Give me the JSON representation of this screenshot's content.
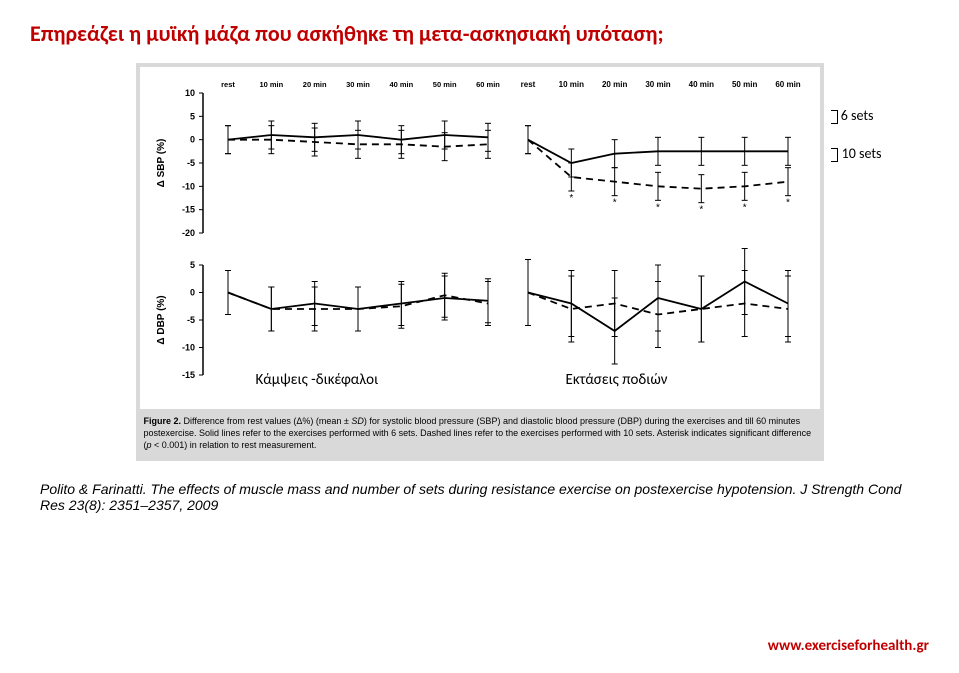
{
  "title": "Επηρεάζει η μυϊκή μάζα που ασκήθηκε τη μετα-ασκησιακή υπόταση;",
  "figure": {
    "annotation_6sets": "6 sets",
    "annotation_10sets": "10 sets",
    "overlay_left": "Κάμψεις -δικέφαλοι",
    "overlay_right": "Εκτάσεις ποδιών",
    "top_panel": {
      "ylabel": "Δ SBP (%)",
      "ylim": [
        -20,
        10
      ],
      "yticks": [
        -20,
        -15,
        -10,
        -5,
        0,
        5,
        10
      ],
      "label_fontsize": 10,
      "left_xticks": [
        "rest",
        "10 min",
        "20 min",
        "30 min",
        "40 min",
        "50 min",
        "60 min"
      ],
      "right_xticks": [
        "rest",
        "10 min",
        "20 min",
        "30 min",
        "40 min",
        "50 min",
        "60 min"
      ],
      "left_solid": {
        "y": [
          0,
          1,
          0.5,
          1,
          0,
          1,
          0.5
        ],
        "err": [
          3,
          3,
          3,
          3,
          3,
          3,
          3
        ]
      },
      "left_dashed": {
        "y": [
          0,
          0,
          -0.5,
          -1,
          -1,
          -1.5,
          -1
        ],
        "err": [
          3,
          3,
          3,
          3,
          3,
          3,
          3
        ]
      },
      "right_solid": {
        "y": [
          0,
          -5,
          -3,
          -2.5,
          -2.5,
          -2.5,
          -2.5
        ],
        "err": [
          3,
          3,
          3,
          3,
          3,
          3,
          3
        ]
      },
      "right_dashed": {
        "y": [
          0,
          -8,
          -9,
          -10,
          -10.5,
          -10,
          -9
        ],
        "err": [
          3,
          3,
          3,
          3,
          3,
          3,
          3
        ]
      },
      "right_asterisks_idx": [
        1,
        2,
        3,
        4,
        5,
        6
      ],
      "line_color": "#000000",
      "line_width": 1.5
    },
    "bottom_panel": {
      "ylabel": "Δ DBP (%)",
      "ylim": [
        -15,
        5
      ],
      "yticks": [
        -15,
        -10,
        -5,
        0,
        5
      ],
      "label_fontsize": 10,
      "left_solid": {
        "y": [
          0,
          -3,
          -2,
          -3,
          -2,
          -1,
          -1.5
        ],
        "err": [
          4,
          4,
          4,
          4,
          4,
          4,
          4
        ]
      },
      "left_dashed": {
        "y": [
          0,
          -3,
          -3,
          -3,
          -2.5,
          -0.5,
          -2
        ],
        "err": [
          4,
          4,
          4,
          4,
          4,
          4,
          4
        ]
      },
      "right_solid": {
        "y": [
          0,
          -2,
          -7,
          -1,
          -3,
          2,
          -2
        ],
        "err": [
          6,
          6,
          6,
          6,
          6,
          6,
          6
        ]
      },
      "right_dashed": {
        "y": [
          0,
          -3,
          -2,
          -4,
          -3,
          -2,
          -3
        ],
        "err": [
          6,
          6,
          6,
          6,
          6,
          6,
          6
        ]
      },
      "line_color": "#000000",
      "line_width": 1.5
    },
    "caption_html": "Figure 2. Difference from rest values (Δ%) (mean ± SD) for systolic blood pressure (SBP) and diastolic blood pressure (DBP) during the exercises and till 60 minutes postexercise. Solid lines refer to the exercises performed with 6 sets. Dashed lines refer to the exercises performed with 10 sets. Asterisk indicates significant difference (p < 0.001) in relation to rest measurement."
  },
  "citation": "Polito & Farinatti. The effects of muscle mass and number of sets during resistance exercise on postexercise hypotension. J Strength Cond Res 23(8): 2351–2357, 2009",
  "footer_url": "www.exerciseforhealth.gr",
  "colors": {
    "title": "#c00000",
    "figure_bg": "#d9d9d9",
    "line": "#000000",
    "background": "#ffffff"
  }
}
